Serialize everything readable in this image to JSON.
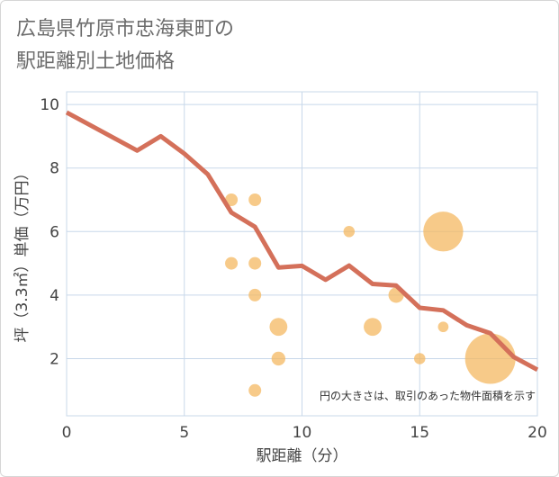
{
  "title": {
    "line1": "広島県竹原市忠海東町の",
    "line2": "駅距離別土地価格"
  },
  "colors": {
    "line": "#d4705a",
    "bubble": "#f4b862",
    "grid": "#c8d8ea",
    "bg": "#ffffff"
  },
  "chart_data": {
    "type": "scatter",
    "xlabel": "駅距離（分）",
    "ylabel": "坪（3.3㎡）単価（万円）",
    "xlim": [
      0,
      20
    ],
    "ylim": [
      0.2,
      10.4
    ],
    "xticks": [
      0,
      5,
      10,
      15,
      20
    ],
    "yticks": [
      2,
      4,
      6,
      8,
      10
    ],
    "annotation": "円の大きさは、取引のあった物件面積を示す",
    "line": {
      "name": "trend",
      "x": [
        0,
        1,
        2,
        3,
        4,
        5,
        6,
        7,
        8,
        9,
        10,
        11,
        12,
        13,
        14,
        15,
        16,
        17,
        18,
        19,
        20
      ],
      "y": [
        9.75,
        9.35,
        8.95,
        8.55,
        9.0,
        8.45,
        7.8,
        6.6,
        6.15,
        4.87,
        4.92,
        4.48,
        4.93,
        4.35,
        4.3,
        3.6,
        3.52,
        3.05,
        2.8,
        2.05,
        1.65
      ]
    },
    "bubbles": [
      {
        "x": 7,
        "y": 7.0,
        "size": 1
      },
      {
        "x": 8,
        "y": 7.0,
        "size": 1
      },
      {
        "x": 7,
        "y": 5.0,
        "size": 1
      },
      {
        "x": 8,
        "y": 5.0,
        "size": 1
      },
      {
        "x": 8,
        "y": 4.0,
        "size": 1
      },
      {
        "x": 8,
        "y": 1.0,
        "size": 1
      },
      {
        "x": 9,
        "y": 3.0,
        "size": 2
      },
      {
        "x": 9,
        "y": 2.0,
        "size": 1.2
      },
      {
        "x": 12,
        "y": 6.0,
        "size": 0.8
      },
      {
        "x": 13,
        "y": 3.0,
        "size": 2
      },
      {
        "x": 14,
        "y": 4.0,
        "size": 1.5
      },
      {
        "x": 15,
        "y": 2.0,
        "size": 0.8
      },
      {
        "x": 16,
        "y": 6.0,
        "size": 10
      },
      {
        "x": 16,
        "y": 3.0,
        "size": 0.7
      },
      {
        "x": 18,
        "y": 2.0,
        "size": 16
      }
    ]
  }
}
